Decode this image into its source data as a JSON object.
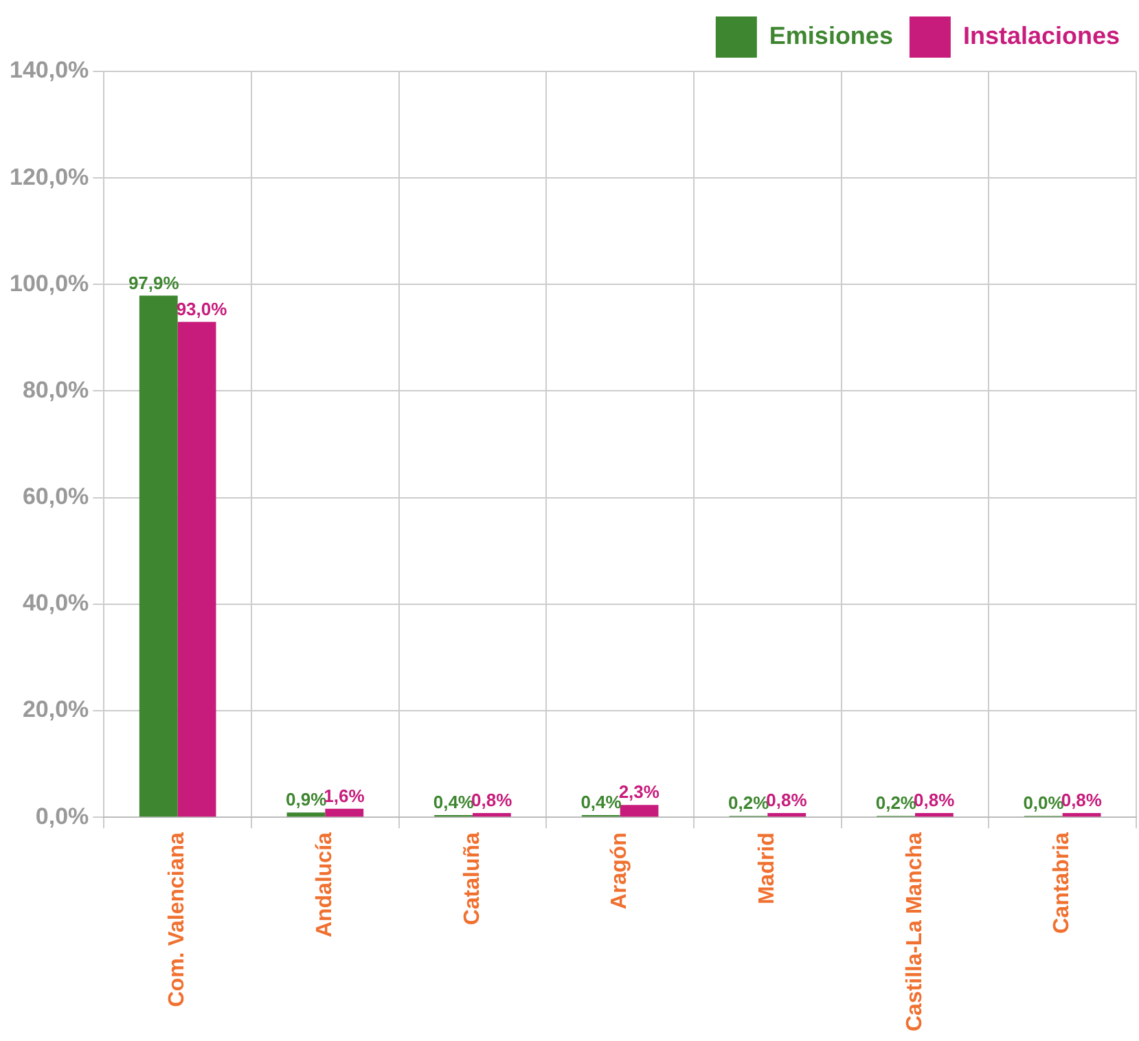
{
  "chart_data": {
    "type": "bar",
    "categories": [
      "Com. Valenciana",
      "Andalucía",
      "Cataluña",
      "Aragón",
      "Madrid",
      "Castilla-La Mancha",
      "Cantabria"
    ],
    "series": [
      {
        "name": "Emisiones",
        "color": "#3e8630",
        "values": [
          97.9,
          0.9,
          0.4,
          0.4,
          0.2,
          0.2,
          0.0
        ],
        "value_labels": [
          "97,9%",
          "0,9%",
          "0,4%",
          "0,4%",
          "0,2%",
          "0,2%",
          "0,0%"
        ]
      },
      {
        "name": "Instalaciones",
        "color": "#c81c7c",
        "values": [
          93.0,
          1.6,
          0.8,
          2.3,
          0.8,
          0.8,
          0.8
        ],
        "value_labels": [
          "93,0%",
          "1,6%",
          "0,8%",
          "2,3%",
          "0,8%",
          "0,8%",
          "0,8%"
        ]
      }
    ],
    "ylim": [
      0,
      140
    ],
    "yticks": [
      {
        "value": 0,
        "label": "0,0%"
      },
      {
        "value": 20,
        "label": "20,0%"
      },
      {
        "value": 40,
        "label": "40,0%"
      },
      {
        "value": 60,
        "label": "60,0%"
      },
      {
        "value": 80,
        "label": "80,0%"
      },
      {
        "value": 100,
        "label": "100,0%"
      },
      {
        "value": 120,
        "label": "120,0%"
      },
      {
        "value": 140,
        "label": "140,0%"
      }
    ],
    "grid": true,
    "legend": "top right"
  }
}
